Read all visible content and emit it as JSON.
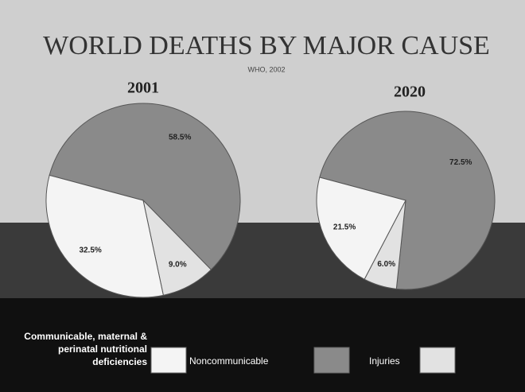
{
  "title": "WORLD DEATHS BY MAJOR CAUSE",
  "subtitle": "WHO, 2002",
  "chart_data": [
    {
      "type": "pie",
      "title": "2001",
      "categories": [
        "Communicable, maternal & perinatal nutritional deficiencies",
        "Noncommunicable",
        "Injuries"
      ],
      "values": [
        32.5,
        58.5,
        9.0
      ],
      "value_labels": [
        "32.5%",
        "58.5%",
        "9.0%"
      ],
      "colors": [
        "#f4f4f4",
        "#8a8a8a",
        "#e2e2e2"
      ]
    },
    {
      "type": "pie",
      "title": "2020",
      "categories": [
        "Communicable, maternal & perinatal nutritional deficiencies",
        "Noncommunicable",
        "Injuries"
      ],
      "values": [
        21.5,
        72.5,
        6.0
      ],
      "value_labels": [
        "21.5%",
        "72.5%",
        "6.0%"
      ],
      "colors": [
        "#f4f4f4",
        "#8a8a8a",
        "#e2e2e2"
      ]
    }
  ]
}
